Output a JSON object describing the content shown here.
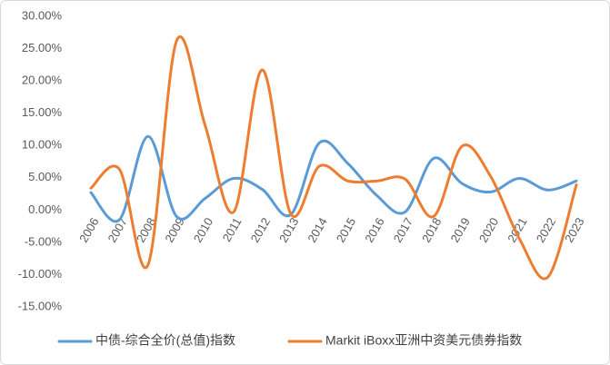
{
  "chart_data": {
    "type": "line",
    "categories": [
      "2006",
      "2007",
      "2008",
      "2009",
      "2010",
      "2011",
      "2012",
      "2013",
      "2014",
      "2015",
      "2016",
      "2017",
      "2018",
      "2019",
      "2020",
      "2021",
      "2022",
      "2023"
    ],
    "series": [
      {
        "name": "中债-综合全价(总值)指数",
        "color": "#5b9bd5",
        "values": [
          2.7,
          -1.5,
          11.4,
          -1.0,
          1.8,
          4.9,
          3.2,
          -0.7,
          10.4,
          7.2,
          2.3,
          -0.3,
          8.0,
          4.1,
          2.8,
          4.9,
          3.1,
          4.5
        ]
      },
      {
        "name": "Markit iBoxx亚洲中资美元债券指数",
        "color": "#ed7d31",
        "values": [
          3.4,
          6.3,
          -8.5,
          26.2,
          13.1,
          -0.3,
          21.7,
          -0.6,
          6.8,
          4.5,
          4.5,
          4.8,
          -1.0,
          9.9,
          5.2,
          -4.4,
          -10.4,
          3.9
        ]
      }
    ],
    "ylim": [
      -15,
      30
    ],
    "yticks": [
      {
        "value": 30,
        "label": "30.00%"
      },
      {
        "value": 25,
        "label": "25.00%"
      },
      {
        "value": 20,
        "label": "20.00%"
      },
      {
        "value": 15,
        "label": "15.00%"
      },
      {
        "value": 10,
        "label": "10.00%"
      },
      {
        "value": 5,
        "label": "5.00%"
      },
      {
        "value": 0,
        "label": "0.00%"
      },
      {
        "value": -5,
        "label": "-5.00%"
      },
      {
        "value": -10,
        "label": "-10.00%"
      },
      {
        "value": -15,
        "label": "-15.00%"
      }
    ],
    "grid": false,
    "smooth": true,
    "legend": "bottom"
  }
}
